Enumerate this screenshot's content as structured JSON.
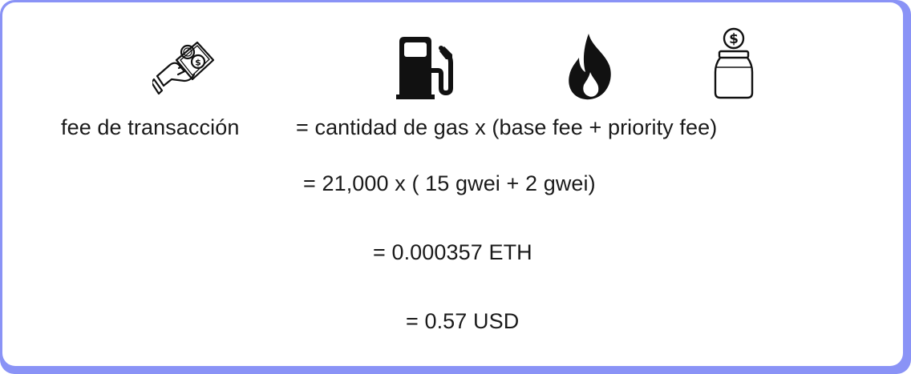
{
  "icons": {
    "transaction": "hand-holding-money-icon",
    "gas": "gas-pump-icon",
    "base_fee": "flame-icon",
    "priority_fee": "tip-jar-icon"
  },
  "colors": {
    "border": "#8a93f6",
    "text": "#1a1a1a",
    "icon": "#111111"
  },
  "formula": {
    "label": "fee de transacción",
    "line1": "= cantidad de gas x (base fee + priority fee)",
    "line2": "= 21,000 x ( 15 gwei + 2 gwei)",
    "line3": "= 0.000357 ETH",
    "line4": "= 0.57 USD"
  }
}
